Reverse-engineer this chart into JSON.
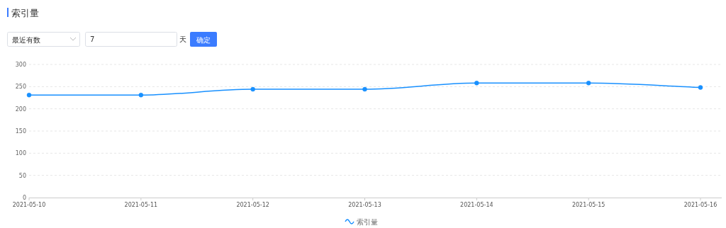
{
  "chart_data": {
    "type": "line",
    "title": "索引量",
    "annotations": [
      "最近有数",
      "7",
      "天",
      "确定"
    ],
    "categories": [
      "2021-05-10",
      "2021-05-11",
      "2021-05-12",
      "2021-05-13",
      "2021-05-14",
      "2021-05-15",
      "2021-05-16"
    ],
    "series": [
      {
        "name": "索引量",
        "color": "#1890ff",
        "values": [
          231,
          231,
          244,
          244,
          258,
          258,
          248
        ]
      }
    ],
    "ylim": [
      0,
      300
    ],
    "yticks": [
      0,
      50,
      100,
      150,
      200,
      250,
      300
    ],
    "grid": "y",
    "legend": "bottom",
    "marker": "circle",
    "line_style": "solid"
  }
}
